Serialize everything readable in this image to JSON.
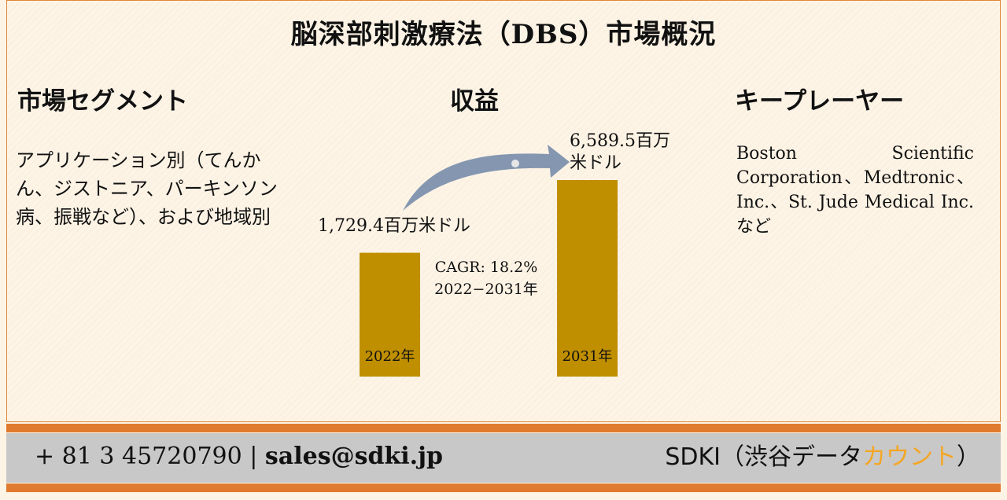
{
  "title": "脳深部刺激療法（DBS）市場概況",
  "segments": {
    "heading": "市場セグメント",
    "text": "アプリケーション別（てんかん、ジストニア、パーキンソン病、振戦など）、および地域別"
  },
  "revenue": {
    "heading": "収益"
  },
  "key_players": {
    "heading": "キープレーヤー",
    "text": "Boston Scientific Corporation、Medtronic、Inc.、St. Jude Medical Inc.など"
  },
  "chart_data": {
    "type": "bar",
    "categories": [
      "2022年",
      "2031年"
    ],
    "values": [
      1729.4,
      6589.5
    ],
    "value_labels": [
      "1,729.4百万米ドル",
      "6,589.5百万米ドル"
    ],
    "unit": "百万米ドル",
    "annotation": {
      "cagr": "CAGR: 18.2%",
      "period": "2022−2031年"
    },
    "bar_color": "#bf8f00",
    "arrow_color": "#8496b0"
  },
  "footer": {
    "phone": "+ 81 3 45720790",
    "separator": "|",
    "email": "sales@sdki.jp",
    "brand_main": "SDKI（渋谷データ",
    "brand_accent": "カウント",
    "brand_end": "）"
  },
  "colors": {
    "orange": "#e07a2e",
    "footer_bg": "#c8c8c8",
    "accent": "#f5a623"
  }
}
